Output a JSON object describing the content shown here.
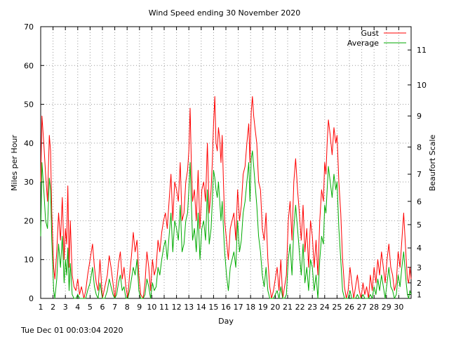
{
  "footer": {
    "timestamp": "Tue Dec 01 00:03:04 2020"
  },
  "chart_data": {
    "type": "line",
    "title": "Wind Speed ending 30 November 2020",
    "xlabel": "Day",
    "ylabel": "Miles per Hour",
    "y2label": "Beaufort Scale",
    "xlim": [
      1,
      31
    ],
    "ylim": [
      0,
      70
    ],
    "x_ticks": [
      1,
      2,
      3,
      4,
      5,
      6,
      7,
      8,
      9,
      10,
      11,
      12,
      13,
      14,
      15,
      16,
      17,
      18,
      19,
      20,
      21,
      22,
      23,
      24,
      25,
      26,
      27,
      28,
      29,
      30
    ],
    "y_ticks": [
      0,
      10,
      20,
      30,
      40,
      50,
      60,
      70
    ],
    "beaufort_ticks": [
      {
        "label": "1",
        "mph": 1
      },
      {
        "label": "2",
        "mph": 4
      },
      {
        "label": "3",
        "mph": 8
      },
      {
        "label": "4",
        "mph": 13
      },
      {
        "label": "5",
        "mph": 19
      },
      {
        "label": "6",
        "mph": 25
      },
      {
        "label": "7",
        "mph": 32
      },
      {
        "label": "8",
        "mph": 39
      },
      {
        "label": "9",
        "mph": 47
      },
      {
        "label": "10",
        "mph": 55
      },
      {
        "label": "11",
        "mph": 64
      }
    ],
    "grid": true,
    "legend": "top-right",
    "series": [
      {
        "name": "Gust",
        "color": "#ff0000",
        "x": [
          1.0,
          1.1,
          1.25,
          1.4,
          1.55,
          1.7,
          1.8,
          1.9,
          2.05,
          2.15,
          2.3,
          2.45,
          2.6,
          2.75,
          2.9,
          3.0,
          3.1,
          3.2,
          3.3,
          3.4,
          3.55,
          3.7,
          3.85,
          4.0,
          4.15,
          4.3,
          4.5,
          4.65,
          4.8,
          5.0,
          5.2,
          5.35,
          5.5,
          5.65,
          5.8,
          6.0,
          6.2,
          6.4,
          6.55,
          6.7,
          6.85,
          7.0,
          7.15,
          7.3,
          7.45,
          7.6,
          7.75,
          7.9,
          8.05,
          8.2,
          8.35,
          8.5,
          8.65,
          8.8,
          8.95,
          9.1,
          9.3,
          9.45,
          9.6,
          9.75,
          9.9,
          10.05,
          10.2,
          10.35,
          10.5,
          10.65,
          10.8,
          10.95,
          11.1,
          11.25,
          11.4,
          11.55,
          11.7,
          11.85,
          12.0,
          12.15,
          12.3,
          12.45,
          12.6,
          12.75,
          12.9,
          13.0,
          13.1,
          13.2,
          13.3,
          13.45,
          13.6,
          13.75,
          13.9,
          14.05,
          14.2,
          14.35,
          14.5,
          14.65,
          14.8,
          14.9,
          15.0,
          15.1,
          15.2,
          15.3,
          15.4,
          15.5,
          15.6,
          15.7,
          15.8,
          15.9,
          16.05,
          16.2,
          16.35,
          16.5,
          16.65,
          16.8,
          16.95,
          17.1,
          17.25,
          17.4,
          17.55,
          17.7,
          17.85,
          17.95,
          18.05,
          18.15,
          18.25,
          18.35,
          18.5,
          18.65,
          18.8,
          18.95,
          19.1,
          19.25,
          19.4,
          19.55,
          19.7,
          19.85,
          20.0,
          20.15,
          20.3,
          20.45,
          20.6,
          20.75,
          20.9,
          21.05,
          21.2,
          21.35,
          21.5,
          21.65,
          21.8,
          21.95,
          22.1,
          22.25,
          22.4,
          22.55,
          22.7,
          22.85,
          23.0,
          23.15,
          23.3,
          23.45,
          23.6,
          23.75,
          23.9,
          24.0,
          24.1,
          24.2,
          24.3,
          24.45,
          24.6,
          24.75,
          24.9,
          25.0,
          25.05,
          25.15,
          25.3,
          25.45,
          25.6,
          25.75,
          25.9,
          26.05,
          26.2,
          26.35,
          26.5,
          26.65,
          26.8,
          26.95,
          27.1,
          27.25,
          27.4,
          27.55,
          27.7,
          27.85,
          28.0,
          28.15,
          28.3,
          28.45,
          28.6,
          28.75,
          28.9,
          29.05,
          29.2,
          29.35,
          29.5,
          29.65,
          29.8,
          29.95,
          30.1,
          30.25,
          30.4,
          30.5,
          30.6,
          30.7,
          30.8,
          30.9,
          31.0
        ],
        "values": [
          30,
          47,
          40,
          32,
          25,
          42,
          38,
          22,
          8,
          5,
          12,
          22,
          15,
          26,
          10,
          18,
          14,
          29,
          8,
          20,
          6,
          3,
          2,
          5,
          1,
          3,
          0,
          2,
          6,
          10,
          14,
          8,
          4,
          2,
          10,
          0,
          3,
          6,
          11,
          8,
          4,
          0,
          4,
          9,
          12,
          5,
          8,
          3,
          0,
          6,
          11,
          17,
          12,
          15,
          6,
          1,
          0,
          4,
          12,
          8,
          2,
          10,
          6,
          8,
          15,
          12,
          17,
          20,
          22,
          18,
          25,
          32,
          20,
          30,
          28,
          25,
          35,
          20,
          22,
          30,
          33,
          38,
          49,
          35,
          25,
          28,
          20,
          33,
          18,
          28,
          30,
          25,
          40,
          22,
          28,
          35,
          45,
          52,
          40,
          38,
          44,
          41,
          35,
          42,
          30,
          20,
          15,
          10,
          18,
          20,
          22,
          15,
          28,
          20,
          24,
          32,
          34,
          40,
          45,
          35,
          48,
          52,
          47,
          44,
          40,
          30,
          28,
          18,
          15,
          22,
          10,
          3,
          0,
          2,
          5,
          8,
          2,
          10,
          0,
          3,
          6,
          20,
          25,
          15,
          30,
          36,
          28,
          22,
          15,
          24,
          12,
          18,
          8,
          20,
          16,
          8,
          15,
          6,
          20,
          28,
          25,
          35,
          32,
          40,
          46,
          42,
          37,
          44,
          40,
          42,
          38,
          30,
          22,
          10,
          3,
          0,
          2,
          8,
          4,
          0,
          3,
          6,
          2,
          0,
          4,
          1,
          3,
          0,
          6,
          2,
          8,
          4,
          10,
          6,
          12,
          8,
          4,
          10,
          14,
          8,
          6,
          2,
          4,
          12,
          8,
          15,
          22,
          16,
          10,
          5,
          4,
          8,
          5
        ]
      },
      {
        "name": "Average",
        "color": "#00aa00",
        "x": [
          1.0,
          1.1,
          1.25,
          1.4,
          1.55,
          1.7,
          1.8,
          1.9,
          2.05,
          2.15,
          2.3,
          2.45,
          2.6,
          2.75,
          2.9,
          3.0,
          3.1,
          3.2,
          3.3,
          3.4,
          3.55,
          3.7,
          3.85,
          4.0,
          4.15,
          4.3,
          4.5,
          4.65,
          4.8,
          5.0,
          5.2,
          5.35,
          5.5,
          5.65,
          5.8,
          6.0,
          6.2,
          6.4,
          6.55,
          6.7,
          6.85,
          7.0,
          7.15,
          7.3,
          7.45,
          7.6,
          7.75,
          7.9,
          8.05,
          8.2,
          8.35,
          8.5,
          8.65,
          8.8,
          8.95,
          9.1,
          9.3,
          9.45,
          9.6,
          9.75,
          9.9,
          10.05,
          10.2,
          10.35,
          10.5,
          10.65,
          10.8,
          10.95,
          11.1,
          11.25,
          11.4,
          11.55,
          11.7,
          11.85,
          12.0,
          12.15,
          12.3,
          12.45,
          12.6,
          12.75,
          12.9,
          13.0,
          13.1,
          13.2,
          13.3,
          13.45,
          13.6,
          13.75,
          13.9,
          14.05,
          14.2,
          14.35,
          14.5,
          14.65,
          14.8,
          14.9,
          15.0,
          15.1,
          15.2,
          15.3,
          15.4,
          15.5,
          15.6,
          15.7,
          15.8,
          15.9,
          16.05,
          16.2,
          16.35,
          16.5,
          16.65,
          16.8,
          16.95,
          17.1,
          17.25,
          17.4,
          17.55,
          17.7,
          17.85,
          17.95,
          18.05,
          18.15,
          18.25,
          18.35,
          18.5,
          18.65,
          18.8,
          18.95,
          19.1,
          19.25,
          19.4,
          19.55,
          19.7,
          19.85,
          20.0,
          20.15,
          20.3,
          20.45,
          20.6,
          20.75,
          20.9,
          21.05,
          21.2,
          21.35,
          21.5,
          21.65,
          21.8,
          21.95,
          22.1,
          22.25,
          22.4,
          22.55,
          22.7,
          22.85,
          23.0,
          23.15,
          23.3,
          23.45,
          23.6,
          23.75,
          23.9,
          24.0,
          24.1,
          24.2,
          24.3,
          24.45,
          24.6,
          24.75,
          24.9,
          25.0,
          25.05,
          25.15,
          25.3,
          25.45,
          25.6,
          25.75,
          25.9,
          26.05,
          26.2,
          26.35,
          26.5,
          26.65,
          26.8,
          26.95,
          27.1,
          27.25,
          27.4,
          27.55,
          27.7,
          27.85,
          28.0,
          28.15,
          28.3,
          28.45,
          28.6,
          28.75,
          28.9,
          29.05,
          29.2,
          29.35,
          29.5,
          29.65,
          29.8,
          29.95,
          30.1,
          30.25,
          30.4,
          30.5,
          30.6,
          30.7,
          30.8,
          30.9,
          31.0
        ],
        "values": [
          16,
          35,
          28,
          20,
          18,
          31,
          28,
          15,
          2,
          0,
          5,
          14,
          8,
          16,
          4,
          10,
          6,
          13,
          2,
          9,
          1,
          0,
          0,
          1,
          0,
          0,
          0,
          0,
          2,
          4,
          8,
          3,
          1,
          0,
          4,
          0,
          0,
          2,
          5,
          3,
          1,
          0,
          1,
          4,
          6,
          2,
          3,
          0,
          0,
          2,
          5,
          8,
          6,
          10,
          2,
          0,
          0,
          1,
          5,
          3,
          0,
          4,
          2,
          3,
          8,
          6,
          10,
          13,
          15,
          10,
          16,
          22,
          12,
          20,
          18,
          15,
          24,
          12,
          14,
          20,
          22,
          28,
          35,
          25,
          15,
          18,
          12,
          22,
          10,
          18,
          20,
          15,
          28,
          14,
          18,
          25,
          33,
          31,
          28,
          26,
          30,
          25,
          20,
          25,
          18,
          12,
          6,
          2,
          8,
          10,
          12,
          8,
          20,
          12,
          15,
          22,
          25,
          30,
          35,
          25,
          36,
          38,
          34,
          30,
          24,
          16,
          12,
          6,
          3,
          8,
          2,
          0,
          0,
          0,
          1,
          2,
          0,
          3,
          0,
          0,
          1,
          10,
          14,
          6,
          18,
          24,
          18,
          12,
          6,
          14,
          4,
          8,
          2,
          10,
          8,
          2,
          6,
          0,
          10,
          16,
          14,
          24,
          22,
          28,
          34,
          30,
          26,
          32,
          28,
          30,
          26,
          18,
          10,
          2,
          0,
          0,
          0,
          2,
          0,
          0,
          0,
          1,
          0,
          0,
          1,
          0,
          0,
          0,
          1,
          0,
          3,
          1,
          5,
          2,
          6,
          3,
          0,
          4,
          8,
          3,
          2,
          0,
          1,
          6,
          3,
          8,
          12,
          8,
          4,
          1,
          0,
          2,
          1
        ]
      }
    ]
  }
}
